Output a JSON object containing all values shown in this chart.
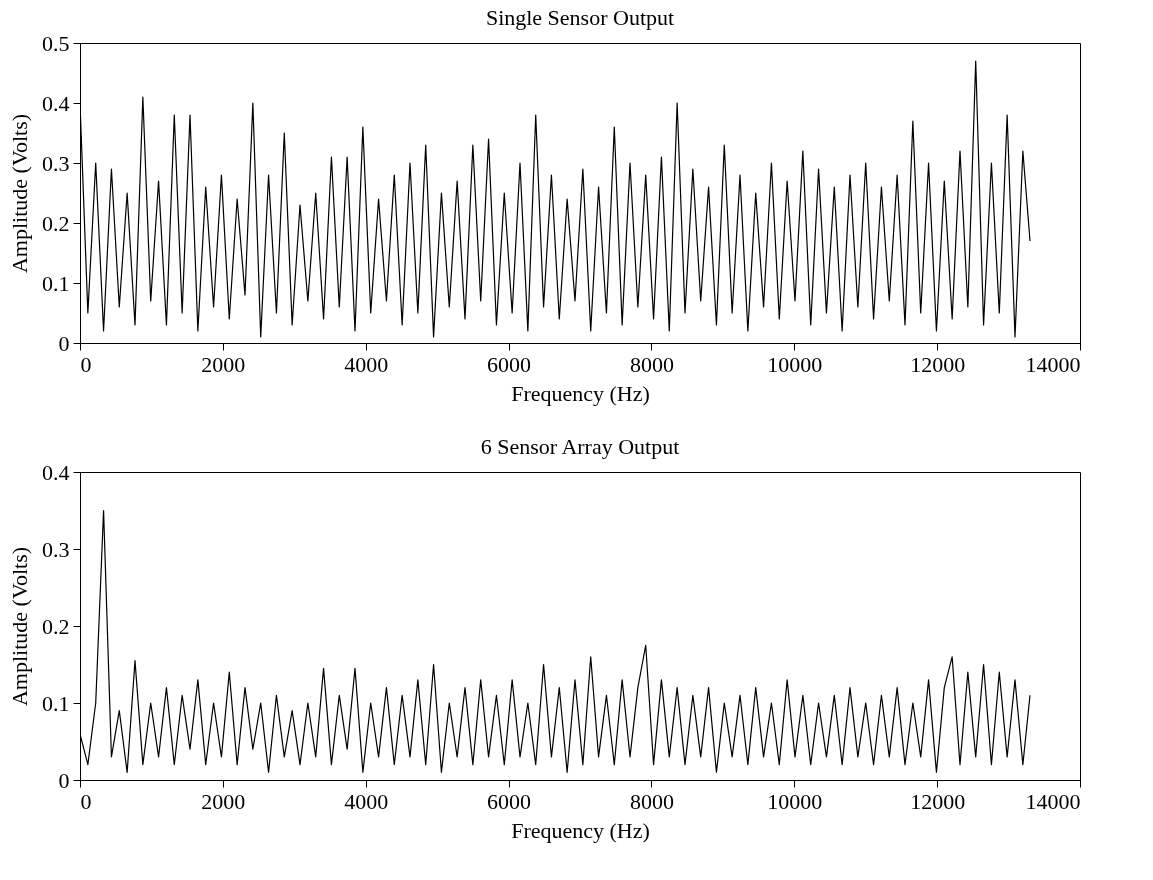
{
  "chart_data": [
    {
      "type": "line",
      "title": "Single Sensor Output",
      "xlabel": "Frequency (Hz)",
      "ylabel": "Amplitude (Volts)",
      "xlim": [
        0,
        14000
      ],
      "xticks": [
        0,
        2000,
        4000,
        6000,
        8000,
        10000,
        12000,
        14000
      ],
      "ylim": [
        0,
        0.5
      ],
      "yticks": [
        0,
        0.1,
        0.2,
        0.3,
        0.4,
        0.5
      ],
      "grid": false,
      "x": [
        0,
        110,
        220,
        330,
        440,
        550,
        660,
        770,
        880,
        990,
        1100,
        1210,
        1320,
        1430,
        1540,
        1650,
        1760,
        1870,
        1980,
        2090,
        2200,
        2310,
        2420,
        2530,
        2640,
        2750,
        2860,
        2970,
        3080,
        3190,
        3300,
        3410,
        3520,
        3630,
        3740,
        3850,
        3960,
        4070,
        4180,
        4290,
        4400,
        4510,
        4620,
        4730,
        4840,
        4950,
        5060,
        5170,
        5280,
        5390,
        5500,
        5610,
        5720,
        5830,
        5940,
        6050,
        6160,
        6270,
        6380,
        6490,
        6600,
        6710,
        6820,
        6930,
        7040,
        7150,
        7260,
        7370,
        7480,
        7590,
        7700,
        7810,
        7920,
        8030,
        8140,
        8250,
        8360,
        8470,
        8580,
        8690,
        8800,
        8910,
        9020,
        9130,
        9240,
        9350,
        9460,
        9570,
        9680,
        9790,
        9900,
        10010,
        10120,
        10230,
        10340,
        10450,
        10560,
        10670,
        10780,
        10890,
        11000,
        11110,
        11220,
        11330,
        11440,
        11550,
        11660,
        11770,
        11880,
        11990,
        12100,
        12210,
        12320,
        12430,
        12540,
        12650,
        12760,
        12870,
        12980,
        13090,
        13200,
        13300
      ],
      "series": [
        {
          "color": "#000000",
          "values": [
            0.4,
            0.05,
            0.3,
            0.02,
            0.29,
            0.06,
            0.25,
            0.03,
            0.41,
            0.07,
            0.27,
            0.03,
            0.38,
            0.05,
            0.38,
            0.02,
            0.26,
            0.06,
            0.28,
            0.04,
            0.24,
            0.08,
            0.4,
            0.01,
            0.28,
            0.05,
            0.35,
            0.03,
            0.23,
            0.07,
            0.25,
            0.04,
            0.31,
            0.06,
            0.31,
            0.02,
            0.36,
            0.05,
            0.24,
            0.07,
            0.28,
            0.03,
            0.3,
            0.05,
            0.33,
            0.01,
            0.25,
            0.06,
            0.27,
            0.04,
            0.33,
            0.07,
            0.34,
            0.03,
            0.25,
            0.05,
            0.3,
            0.02,
            0.38,
            0.06,
            0.28,
            0.04,
            0.24,
            0.07,
            0.29,
            0.02,
            0.26,
            0.05,
            0.36,
            0.03,
            0.3,
            0.06,
            0.28,
            0.04,
            0.31,
            0.02,
            0.4,
            0.05,
            0.29,
            0.07,
            0.26,
            0.03,
            0.33,
            0.05,
            0.28,
            0.02,
            0.25,
            0.06,
            0.3,
            0.04,
            0.27,
            0.07,
            0.32,
            0.03,
            0.29,
            0.05,
            0.26,
            0.02,
            0.28,
            0.06,
            0.3,
            0.04,
            0.26,
            0.07,
            0.28,
            0.03,
            0.37,
            0.05,
            0.3,
            0.02,
            0.27,
            0.04,
            0.32,
            0.06,
            0.47,
            0.03,
            0.3,
            0.05,
            0.38,
            0.01,
            0.32,
            0.17
          ]
        }
      ]
    },
    {
      "type": "line",
      "title": "6 Sensor Array Output",
      "xlabel": "Frequency (Hz)",
      "ylabel": "Amplitude (Volts)",
      "xlim": [
        0,
        14000
      ],
      "xticks": [
        0,
        2000,
        4000,
        6000,
        8000,
        10000,
        12000,
        14000
      ],
      "ylim": [
        0,
        0.4
      ],
      "yticks": [
        0,
        0.1,
        0.2,
        0.3,
        0.4
      ],
      "grid": false,
      "x": [
        0,
        110,
        220,
        330,
        440,
        550,
        660,
        770,
        880,
        990,
        1100,
        1210,
        1320,
        1430,
        1540,
        1650,
        1760,
        1870,
        1980,
        2090,
        2200,
        2310,
        2420,
        2530,
        2640,
        2750,
        2860,
        2970,
        3080,
        3190,
        3300,
        3410,
        3520,
        3630,
        3740,
        3850,
        3960,
        4070,
        4180,
        4290,
        4400,
        4510,
        4620,
        4730,
        4840,
        4950,
        5060,
        5170,
        5280,
        5390,
        5500,
        5610,
        5720,
        5830,
        5940,
        6050,
        6160,
        6270,
        6380,
        6490,
        6600,
        6710,
        6820,
        6930,
        7040,
        7150,
        7260,
        7370,
        7480,
        7590,
        7700,
        7810,
        7920,
        8030,
        8140,
        8250,
        8360,
        8470,
        8580,
        8690,
        8800,
        8910,
        9020,
        9130,
        9240,
        9350,
        9460,
        9570,
        9680,
        9790,
        9900,
        10010,
        10120,
        10230,
        10340,
        10450,
        10560,
        10670,
        10780,
        10890,
        11000,
        11110,
        11220,
        11330,
        11440,
        11550,
        11660,
        11770,
        11880,
        11990,
        12100,
        12210,
        12320,
        12430,
        12540,
        12650,
        12760,
        12870,
        12980,
        13090,
        13200,
        13300
      ],
      "series": [
        {
          "color": "#000000",
          "values": [
            0.06,
            0.02,
            0.1,
            0.35,
            0.03,
            0.09,
            0.01,
            0.155,
            0.02,
            0.1,
            0.03,
            0.12,
            0.02,
            0.11,
            0.04,
            0.13,
            0.02,
            0.1,
            0.03,
            0.14,
            0.02,
            0.12,
            0.04,
            0.1,
            0.01,
            0.11,
            0.03,
            0.09,
            0.02,
            0.1,
            0.03,
            0.145,
            0.02,
            0.11,
            0.04,
            0.145,
            0.01,
            0.1,
            0.03,
            0.12,
            0.02,
            0.11,
            0.03,
            0.13,
            0.02,
            0.15,
            0.01,
            0.1,
            0.03,
            0.12,
            0.02,
            0.13,
            0.03,
            0.11,
            0.02,
            0.13,
            0.03,
            0.1,
            0.02,
            0.15,
            0.03,
            0.12,
            0.01,
            0.13,
            0.02,
            0.16,
            0.03,
            0.11,
            0.02,
            0.13,
            0.03,
            0.12,
            0.175,
            0.02,
            0.13,
            0.03,
            0.12,
            0.02,
            0.11,
            0.03,
            0.12,
            0.01,
            0.1,
            0.03,
            0.11,
            0.02,
            0.12,
            0.03,
            0.1,
            0.02,
            0.13,
            0.03,
            0.11,
            0.02,
            0.1,
            0.03,
            0.11,
            0.02,
            0.12,
            0.03,
            0.1,
            0.02,
            0.11,
            0.03,
            0.12,
            0.02,
            0.1,
            0.03,
            0.13,
            0.01,
            0.12,
            0.16,
            0.02,
            0.14,
            0.03,
            0.15,
            0.02,
            0.14,
            0.03,
            0.13,
            0.02,
            0.11
          ]
        }
      ]
    }
  ]
}
